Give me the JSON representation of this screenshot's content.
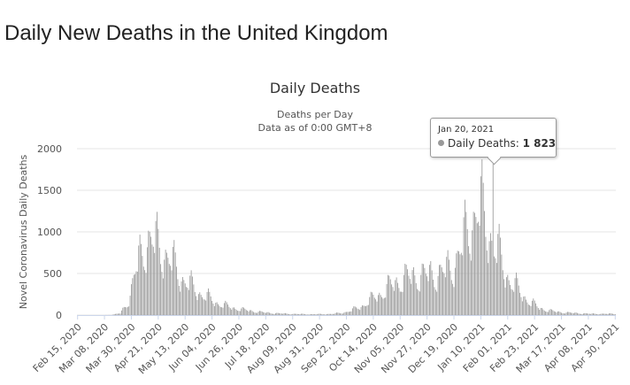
{
  "page": {
    "heading": "Daily New Deaths in the United Kingdom"
  },
  "chart_data": {
    "type": "bar",
    "title": "Daily Deaths",
    "subtitle_lines": [
      "Deaths per Day",
      "Data as of 0:00 GMT+8"
    ],
    "ylabel": "Novel Coronavirus Daily Deaths",
    "xlabel": "",
    "ylim": [
      0,
      2000
    ],
    "yticks": [
      0,
      500,
      1000,
      1500,
      2000
    ],
    "grid": true,
    "legend": "none",
    "bar_color": "#999999",
    "x_start": "2020-02-15",
    "x_end": "2021-04-30",
    "xtick_labels": [
      "Feb 15, 2020",
      "Mar 08, 2020",
      "Mar 30, 2020",
      "Apr 21, 2020",
      "May 13, 2020",
      "Jun 04, 2020",
      "Jun 26, 2020",
      "Jul 18, 2020",
      "Aug 09, 2020",
      "Aug 31, 2020",
      "Sep 22, 2020",
      "Oct 14, 2020",
      "Nov 05, 2020",
      "Nov 27, 2020",
      "Dec 19, 2020",
      "Jan 10, 2021",
      "Feb 01, 2021",
      "Feb 23, 2021",
      "Mar 17, 2021",
      "Apr 08, 2021",
      "Apr 30, 2021"
    ],
    "series": [
      {
        "name": "Daily Deaths",
        "weekly_avg_values": [
          0,
          0,
          0,
          0,
          2,
          22,
          180,
          600,
          900,
          850,
          780,
          620,
          480,
          360,
          290,
          220,
          160,
          120,
          90,
          70,
          55,
          40,
          30,
          22,
          18,
          14,
          12,
          10,
          10,
          12,
          16,
          28,
          55,
          95,
          160,
          230,
          300,
          380,
          430,
          460,
          470,
          480,
          490,
          520,
          600,
          820,
          1150,
          1250,
          1050,
          760,
          520,
          360,
          240,
          150,
          85,
          55,
          40,
          30,
          25,
          20,
          15,
          15
        ],
        "highlight": {
          "date": "Jan 20, 2021",
          "value": 1823
        }
      }
    ],
    "tooltip": {
      "date": "Jan 20, 2021",
      "label": "Daily Deaths",
      "value": "1 823"
    }
  }
}
